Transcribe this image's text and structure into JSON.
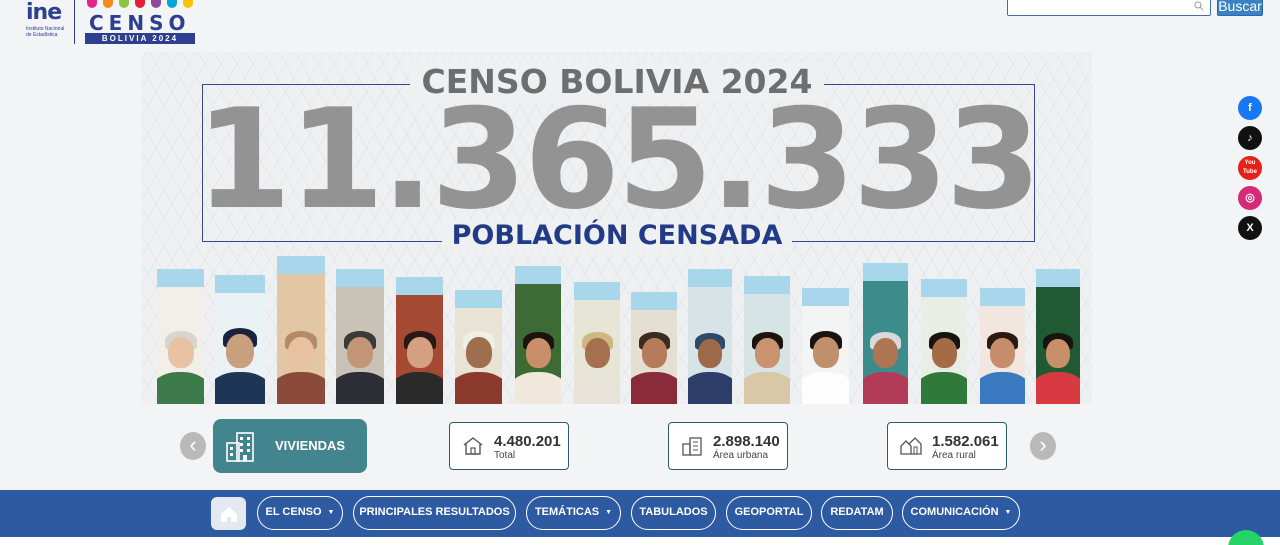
{
  "header": {
    "ine_logo": "ine",
    "ine_subtitle": "Instituto Nacional de Estadística",
    "censo_logo": "CENSO",
    "censo_logo_band": "BOLIVIA 2024",
    "search_placeholder": "",
    "search_button": "Buscar",
    "censo_bar_colors": [
      "#e5258e",
      "#f28c1c",
      "#8cc63f",
      "#e51f3a",
      "#8b4a9c",
      "#00a6d6",
      "#f7c600"
    ]
  },
  "banner": {
    "title": "CENSO BOLIVIA 2024",
    "number": "11.365.333",
    "subtitle": "POBLACIÓN CENSADA"
  },
  "stats": {
    "category_label": "VIVIENDAS",
    "items": [
      {
        "value": "4.480.201",
        "caption": "Total",
        "icon": "house-icon"
      },
      {
        "value": "2.898.140",
        "caption": "Área urbana",
        "icon": "city-icon"
      },
      {
        "value": "1.582.061",
        "caption": "Área rural",
        "icon": "village-icon"
      }
    ],
    "prev_arrow": "‹",
    "next_arrow": "›"
  },
  "social": [
    {
      "name": "facebook-icon",
      "glyph": "f",
      "color": "#1877f2"
    },
    {
      "name": "tiktok-icon",
      "glyph": "♪",
      "color": "#111111"
    },
    {
      "name": "youtube-icon",
      "glyph": "You Tube",
      "color": "#e62117"
    },
    {
      "name": "instagram-icon",
      "glyph": "◎",
      "color": "#d62976"
    },
    {
      "name": "x-icon",
      "glyph": "X",
      "color": "#111111"
    }
  ],
  "nav": {
    "items": [
      {
        "label": "EL CENSO",
        "dropdown": true
      },
      {
        "label": "PRINCIPALES RESULTADOS",
        "dropdown": false
      },
      {
        "label": "TEMÁTICAS",
        "dropdown": true
      },
      {
        "label": "TABULADOS",
        "dropdown": false
      },
      {
        "label": "GEOPORTAL",
        "dropdown": false
      },
      {
        "label": "REDATAM",
        "dropdown": false
      },
      {
        "label": "COMUNICACIÓN",
        "dropdown": true
      }
    ],
    "caret": "▼"
  },
  "colors": {
    "nav_bg": "#2e5aa1",
    "accent_teal": "#43858e",
    "brand_blue": "#223b86"
  }
}
